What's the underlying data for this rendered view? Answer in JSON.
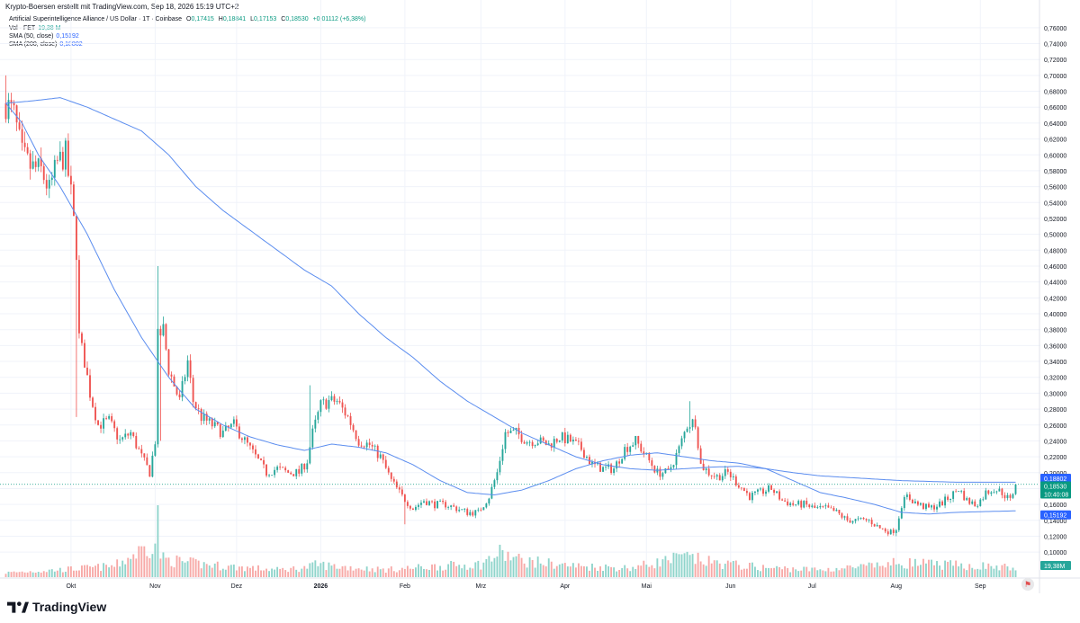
{
  "header": {
    "credit": "Krypto-Boersen erstellt mit TradingView.com, Sep 18, 2026 15:19 UTC+2",
    "symbol_line": "Artificial Superintelligence Alliance / US Dollar · 1T · Coinbase",
    "ohlc": {
      "o_label": "O",
      "o_value": "0,17415",
      "h_label": "H",
      "h_value": "0,18841",
      "l_label": "L",
      "l_value": "0,17153",
      "c_label": "C",
      "c_value": "0,18530",
      "change": "+0,01112 (+6,38%)"
    },
    "vol_label": "Vol · FET",
    "vol_value": "19,38 M",
    "sma50_label": "SMA (50, close)",
    "sma50_value": "0,15192",
    "sma200_label": "SMA (200, close)",
    "sma200_value": "0,18802"
  },
  "footer": {
    "brand": "TradingView",
    "globe_icon": "globe-flag-icon"
  },
  "colors": {
    "up": "#26a69a",
    "down": "#ef5350",
    "up_vol": "#8fd4cb",
    "down_vol": "#f7a9a7",
    "sma": "#5b8def",
    "sma200_badge": "#2962ff",
    "sma50_badge": "#2962ff",
    "price_badge": "#089981",
    "grid": "#f0f3fa",
    "text": "#131722"
  },
  "chart_data": {
    "type": "candlestick",
    "y_axis": {
      "min": 0.09,
      "max": 0.77,
      "position": "right"
    },
    "y_ticks": [
      "0,76000",
      "0,74000",
      "0,72000",
      "0,70000",
      "0,68000",
      "0,66000",
      "0,64000",
      "0,62000",
      "0,60000",
      "0,58000",
      "0,56000",
      "0,54000",
      "0,52000",
      "0,50000",
      "0,48000",
      "0,46000",
      "0,44000",
      "0,42000",
      "0,40000",
      "0,38000",
      "0,36000",
      "0,34000",
      "0,32000",
      "0,30000",
      "0,28000",
      "0,26000",
      "0,24000",
      "0,22000",
      "0,20000",
      "0,18000",
      "0,16000",
      "0,14000",
      "0,12000",
      "0,10000"
    ],
    "y_tick_values": [
      0.76,
      0.74,
      0.72,
      0.7,
      0.68,
      0.66,
      0.64,
      0.62,
      0.6,
      0.58,
      0.56,
      0.54,
      0.52,
      0.5,
      0.48,
      0.46,
      0.44,
      0.42,
      0.4,
      0.38,
      0.36,
      0.34,
      0.32,
      0.3,
      0.28,
      0.26,
      0.24,
      0.22,
      0.2,
      0.18,
      0.16,
      0.14,
      0.12,
      0.1
    ],
    "x_ticks": [
      {
        "label": "Okt",
        "day": 24
      },
      {
        "label": "Nov",
        "day": 55
      },
      {
        "label": "Dez",
        "day": 85
      },
      {
        "label": "2026",
        "day": 116
      },
      {
        "label": "Feb",
        "day": 147
      },
      {
        "label": "Mrz",
        "day": 175
      },
      {
        "label": "Apr",
        "day": 206
      },
      {
        "label": "Mai",
        "day": 236
      },
      {
        "label": "Jun",
        "day": 267
      },
      {
        "label": "Jul",
        "day": 297
      },
      {
        "label": "Aug",
        "day": 328
      },
      {
        "label": "Sep",
        "day": 359
      }
    ],
    "price_anchors": [
      [
        0,
        0.665
      ],
      [
        3,
        0.65
      ],
      [
        6,
        0.6
      ],
      [
        9,
        0.585
      ],
      [
        13,
        0.58
      ],
      [
        16,
        0.555
      ],
      [
        19,
        0.59
      ],
      [
        22,
        0.6
      ],
      [
        24,
        0.55
      ],
      [
        26,
        0.48
      ],
      [
        27,
        0.37
      ],
      [
        29,
        0.34
      ],
      [
        31,
        0.3
      ],
      [
        34,
        0.26
      ],
      [
        38,
        0.265
      ],
      [
        42,
        0.24
      ],
      [
        46,
        0.25
      ],
      [
        50,
        0.22
      ],
      [
        53,
        0.2
      ],
      [
        55,
        0.24
      ],
      [
        56,
        0.37
      ],
      [
        58,
        0.38
      ],
      [
        60,
        0.33
      ],
      [
        62,
        0.31
      ],
      [
        64,
        0.29
      ],
      [
        67,
        0.34
      ],
      [
        69,
        0.29
      ],
      [
        72,
        0.27
      ],
      [
        76,
        0.26
      ],
      [
        80,
        0.25
      ],
      [
        84,
        0.26
      ],
      [
        88,
        0.24
      ],
      [
        92,
        0.22
      ],
      [
        96,
        0.2
      ],
      [
        100,
        0.205
      ],
      [
        104,
        0.2
      ],
      [
        108,
        0.2
      ],
      [
        111,
        0.215
      ],
      [
        113,
        0.25
      ],
      [
        116,
        0.285
      ],
      [
        119,
        0.29
      ],
      [
        122,
        0.29
      ],
      [
        126,
        0.27
      ],
      [
        130,
        0.24
      ],
      [
        134,
        0.235
      ],
      [
        138,
        0.22
      ],
      [
        142,
        0.19
      ],
      [
        146,
        0.17
      ],
      [
        150,
        0.155
      ],
      [
        154,
        0.165
      ],
      [
        158,
        0.16
      ],
      [
        162,
        0.16
      ],
      [
        166,
        0.155
      ],
      [
        170,
        0.15
      ],
      [
        174,
        0.15
      ],
      [
        178,
        0.17
      ],
      [
        181,
        0.2
      ],
      [
        184,
        0.25
      ],
      [
        188,
        0.25
      ],
      [
        192,
        0.24
      ],
      [
        196,
        0.24
      ],
      [
        200,
        0.235
      ],
      [
        204,
        0.245
      ],
      [
        208,
        0.24
      ],
      [
        212,
        0.23
      ],
      [
        216,
        0.21
      ],
      [
        220,
        0.205
      ],
      [
        224,
        0.205
      ],
      [
        228,
        0.23
      ],
      [
        232,
        0.24
      ],
      [
        236,
        0.22
      ],
      [
        240,
        0.2
      ],
      [
        244,
        0.2
      ],
      [
        248,
        0.23
      ],
      [
        251,
        0.26
      ],
      [
        254,
        0.265
      ],
      [
        256,
        0.21
      ],
      [
        259,
        0.2
      ],
      [
        262,
        0.195
      ],
      [
        266,
        0.2
      ],
      [
        270,
        0.185
      ],
      [
        274,
        0.17
      ],
      [
        278,
        0.175
      ],
      [
        282,
        0.18
      ],
      [
        286,
        0.165
      ],
      [
        290,
        0.16
      ],
      [
        294,
        0.16
      ],
      [
        298,
        0.155
      ],
      [
        302,
        0.155
      ],
      [
        306,
        0.15
      ],
      [
        310,
        0.14
      ],
      [
        314,
        0.14
      ],
      [
        318,
        0.14
      ],
      [
        322,
        0.13
      ],
      [
        326,
        0.125
      ],
      [
        328,
        0.13
      ],
      [
        330,
        0.16
      ],
      [
        332,
        0.17
      ],
      [
        336,
        0.16
      ],
      [
        340,
        0.155
      ],
      [
        344,
        0.16
      ],
      [
        348,
        0.17
      ],
      [
        351,
        0.18
      ],
      [
        354,
        0.165
      ],
      [
        357,
        0.16
      ],
      [
        359,
        0.165
      ],
      [
        361,
        0.175
      ],
      [
        364,
        0.18
      ],
      [
        367,
        0.175
      ],
      [
        370,
        0.165
      ],
      [
        372,
        0.1853
      ]
    ],
    "spikes": [
      {
        "day": 0,
        "high": 0.7
      },
      {
        "day": 26,
        "low": 0.27
      },
      {
        "day": 56,
        "high": 0.46
      },
      {
        "day": 57,
        "low": 0.24
      },
      {
        "day": 112,
        "high": 0.31
      },
      {
        "day": 252,
        "high": 0.29
      },
      {
        "day": 328,
        "low": 0.12
      },
      {
        "day": 147,
        "low": 0.135
      }
    ],
    "sma50": [
      [
        0,
        0.665
      ],
      [
        6,
        0.64
      ],
      [
        12,
        0.6
      ],
      [
        20,
        0.56
      ],
      [
        30,
        0.5
      ],
      [
        40,
        0.43
      ],
      [
        50,
        0.37
      ],
      [
        60,
        0.32
      ],
      [
        70,
        0.28
      ],
      [
        80,
        0.26
      ],
      [
        90,
        0.245
      ],
      [
        100,
        0.235
      ],
      [
        110,
        0.228
      ],
      [
        120,
        0.236
      ],
      [
        130,
        0.232
      ],
      [
        140,
        0.225
      ],
      [
        150,
        0.21
      ],
      [
        160,
        0.19
      ],
      [
        170,
        0.175
      ],
      [
        180,
        0.172
      ],
      [
        190,
        0.178
      ],
      [
        200,
        0.19
      ],
      [
        210,
        0.205
      ],
      [
        220,
        0.215
      ],
      [
        230,
        0.222
      ],
      [
        240,
        0.225
      ],
      [
        250,
        0.22
      ],
      [
        260,
        0.215
      ],
      [
        270,
        0.212
      ],
      [
        280,
        0.205
      ],
      [
        290,
        0.19
      ],
      [
        300,
        0.175
      ],
      [
        310,
        0.168
      ],
      [
        320,
        0.16
      ],
      [
        330,
        0.15
      ],
      [
        340,
        0.148
      ],
      [
        350,
        0.15
      ],
      [
        360,
        0.151
      ],
      [
        372,
        0.15192
      ]
    ],
    "sma200": [
      [
        0,
        0.665
      ],
      [
        10,
        0.668
      ],
      [
        20,
        0.672
      ],
      [
        30,
        0.66
      ],
      [
        40,
        0.645
      ],
      [
        50,
        0.63
      ],
      [
        60,
        0.6
      ],
      [
        70,
        0.56
      ],
      [
        80,
        0.53
      ],
      [
        90,
        0.505
      ],
      [
        100,
        0.48
      ],
      [
        110,
        0.455
      ],
      [
        120,
        0.435
      ],
      [
        130,
        0.4
      ],
      [
        140,
        0.37
      ],
      [
        150,
        0.345
      ],
      [
        160,
        0.315
      ],
      [
        170,
        0.29
      ],
      [
        180,
        0.27
      ],
      [
        190,
        0.25
      ],
      [
        200,
        0.235
      ],
      [
        210,
        0.22
      ],
      [
        220,
        0.21
      ],
      [
        230,
        0.205
      ],
      [
        240,
        0.203
      ],
      [
        250,
        0.205
      ],
      [
        260,
        0.207
      ],
      [
        270,
        0.208
      ],
      [
        280,
        0.205
      ],
      [
        290,
        0.2
      ],
      [
        300,
        0.196
      ],
      [
        310,
        0.194
      ],
      [
        320,
        0.192
      ],
      [
        330,
        0.19
      ],
      [
        340,
        0.189
      ],
      [
        350,
        0.188
      ],
      [
        360,
        0.188
      ],
      [
        372,
        0.18802
      ]
    ],
    "volume_profile": [
      [
        0,
        0.12
      ],
      [
        20,
        0.2
      ],
      [
        40,
        0.3
      ],
      [
        55,
        0.95
      ],
      [
        58,
        0.5
      ],
      [
        66,
        0.4
      ],
      [
        80,
        0.3
      ],
      [
        100,
        0.2
      ],
      [
        110,
        0.25
      ],
      [
        115,
        0.35
      ],
      [
        120,
        0.3
      ],
      [
        140,
        0.2
      ],
      [
        160,
        0.3
      ],
      [
        175,
        0.35
      ],
      [
        182,
        0.65
      ],
      [
        190,
        0.45
      ],
      [
        210,
        0.3
      ],
      [
        230,
        0.25
      ],
      [
        250,
        0.55
      ],
      [
        260,
        0.4
      ],
      [
        280,
        0.25
      ],
      [
        300,
        0.2
      ],
      [
        320,
        0.3
      ],
      [
        330,
        0.4
      ],
      [
        340,
        0.35
      ],
      [
        360,
        0.3
      ],
      [
        372,
        0.25
      ]
    ],
    "last_day": 372,
    "axis_labels": {
      "sma200": "0,18802",
      "price": "0,18530",
      "countdown": "10:40:08",
      "sma50": "0,15192",
      "volume": "19,38M"
    }
  }
}
